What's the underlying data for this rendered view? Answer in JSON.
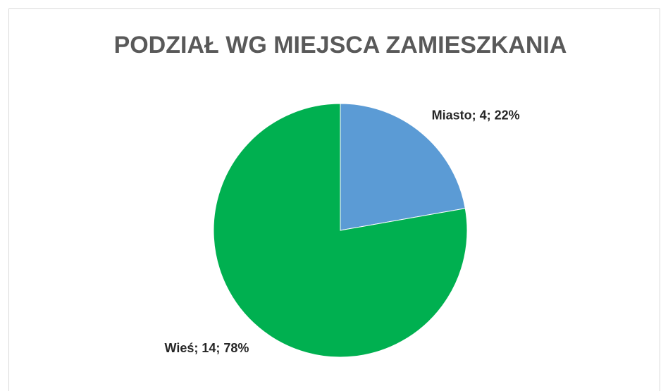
{
  "chart_data": {
    "type": "pie",
    "title": "PODZIAŁ WG MIEJSCA ZAMIESZKANIA",
    "values": [
      4,
      14
    ],
    "value_labels": [
      "Miasto; 4; 22%",
      "Wieś; 14; 78%"
    ],
    "colors": [
      "#5b9bd5",
      "#00b050"
    ]
  }
}
